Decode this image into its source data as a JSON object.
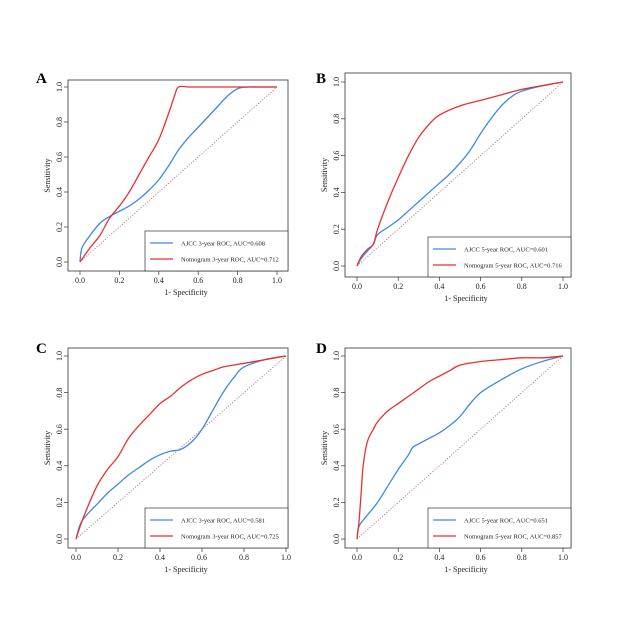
{
  "chart_data": [
    {
      "panel": "A",
      "type": "line",
      "xlabel": "1- Specificity",
      "ylabel": "Sensitivity",
      "xlim": [
        0,
        1
      ],
      "ylim": [
        0,
        1
      ],
      "ticks": [
        "0.0",
        "0.2",
        "0.4",
        "0.6",
        "0.8",
        "1.0"
      ],
      "grid": false,
      "legend_position": "bottom-right",
      "reference_line": true,
      "series": [
        {
          "name": "AJCC 3-year ROC, AUC=0.608",
          "color": "#3c8ae0",
          "x": [
            0,
            0.01,
            0.05,
            0.1,
            0.15,
            0.2,
            0.25,
            0.3,
            0.35,
            0.4,
            0.45,
            0.5,
            0.55,
            0.6,
            0.65,
            0.7,
            0.75,
            0.8,
            0.85,
            0.9,
            1.0
          ],
          "y": [
            0.0,
            0.08,
            0.15,
            0.22,
            0.26,
            0.29,
            0.32,
            0.36,
            0.41,
            0.47,
            0.55,
            0.64,
            0.71,
            0.77,
            0.83,
            0.89,
            0.95,
            0.99,
            1.0,
            1.0,
            1.0
          ]
        },
        {
          "name": "Nomogram 3-year ROC, AUC=0.712",
          "color": "#e8312f",
          "x": [
            0,
            0.05,
            0.1,
            0.15,
            0.2,
            0.25,
            0.3,
            0.35,
            0.4,
            0.45,
            0.48,
            0.5,
            0.55,
            0.6,
            0.7,
            0.8,
            0.9,
            1.0
          ],
          "y": [
            0.0,
            0.08,
            0.15,
            0.25,
            0.32,
            0.4,
            0.5,
            0.6,
            0.7,
            0.85,
            0.95,
            1.0,
            1.0,
            1.0,
            1.0,
            1.0,
            1.0,
            1.0
          ]
        }
      ]
    },
    {
      "panel": "B",
      "type": "line",
      "xlabel": "1- Specificity",
      "ylabel": "Sensitivity",
      "xlim": [
        0,
        1
      ],
      "ylim": [
        0,
        1
      ],
      "ticks": [
        "0.0",
        "0.2",
        "0.4",
        "0.6",
        "0.8",
        "1.0"
      ],
      "grid": false,
      "legend_position": "bottom-right",
      "reference_line": true,
      "series": [
        {
          "name": "AJCC 5-year ROC, AUC=0.601",
          "color": "#3c8ae0",
          "x": [
            0,
            0.02,
            0.05,
            0.08,
            0.1,
            0.15,
            0.2,
            0.25,
            0.3,
            0.35,
            0.4,
            0.45,
            0.5,
            0.55,
            0.6,
            0.65,
            0.7,
            0.75,
            0.8,
            0.9,
            1.0
          ],
          "y": [
            0.0,
            0.04,
            0.08,
            0.12,
            0.17,
            0.21,
            0.25,
            0.3,
            0.35,
            0.4,
            0.45,
            0.5,
            0.56,
            0.63,
            0.72,
            0.8,
            0.87,
            0.92,
            0.95,
            0.98,
            1.0
          ]
        },
        {
          "name": "Nomogram 5-year ROC, AUC=0.716",
          "color": "#e8312f",
          "x": [
            0,
            0.02,
            0.05,
            0.08,
            0.1,
            0.15,
            0.2,
            0.25,
            0.3,
            0.35,
            0.4,
            0.5,
            0.6,
            0.7,
            0.8,
            0.9,
            1.0
          ],
          "y": [
            0.0,
            0.05,
            0.09,
            0.12,
            0.2,
            0.35,
            0.48,
            0.6,
            0.7,
            0.77,
            0.82,
            0.87,
            0.9,
            0.93,
            0.96,
            0.98,
            1.0
          ]
        }
      ]
    },
    {
      "panel": "C",
      "type": "line",
      "xlabel": "1- Specificity",
      "ylabel": "Sensitivity",
      "xlim": [
        0,
        1
      ],
      "ylim": [
        0,
        1
      ],
      "ticks": [
        "0.0",
        "0.2",
        "0.4",
        "0.6",
        "0.8",
        "1.0"
      ],
      "grid": false,
      "legend_position": "bottom-right",
      "reference_line": true,
      "series": [
        {
          "name": "AJCC 3-year ROC, AUC=0.581",
          "color": "#3c8ae0",
          "x": [
            0,
            0.02,
            0.05,
            0.1,
            0.15,
            0.2,
            0.25,
            0.3,
            0.35,
            0.4,
            0.45,
            0.5,
            0.55,
            0.6,
            0.65,
            0.7,
            0.75,
            0.8,
            0.9,
            1.0
          ],
          "y": [
            0.0,
            0.08,
            0.13,
            0.19,
            0.25,
            0.3,
            0.35,
            0.39,
            0.43,
            0.46,
            0.48,
            0.49,
            0.53,
            0.6,
            0.7,
            0.8,
            0.88,
            0.94,
            0.98,
            1.0
          ]
        },
        {
          "name": "Nomogram 3-year ROC, AUC=0.725",
          "color": "#e8312f",
          "x": [
            0,
            0.02,
            0.05,
            0.1,
            0.15,
            0.2,
            0.25,
            0.3,
            0.35,
            0.4,
            0.45,
            0.5,
            0.55,
            0.6,
            0.65,
            0.7,
            0.75,
            0.8,
            0.9,
            1.0
          ],
          "y": [
            0.0,
            0.07,
            0.16,
            0.29,
            0.38,
            0.45,
            0.55,
            0.62,
            0.68,
            0.74,
            0.78,
            0.83,
            0.87,
            0.9,
            0.92,
            0.94,
            0.95,
            0.96,
            0.98,
            1.0
          ]
        }
      ]
    },
    {
      "panel": "D",
      "type": "line",
      "xlabel": "1- Specificity",
      "ylabel": "Sensitivity",
      "xlim": [
        0,
        1
      ],
      "ylim": [
        0,
        1
      ],
      "ticks": [
        "0.0",
        "0.2",
        "0.4",
        "0.6",
        "0.8",
        "1.0"
      ],
      "grid": false,
      "legend_position": "bottom-right",
      "reference_line": true,
      "series": [
        {
          "name": "AJCC 5-year ROC, AUC=0.651",
          "color": "#3c8ae0",
          "x": [
            0,
            0.01,
            0.05,
            0.1,
            0.15,
            0.2,
            0.25,
            0.27,
            0.3,
            0.35,
            0.4,
            0.45,
            0.5,
            0.55,
            0.6,
            0.7,
            0.8,
            0.9,
            1.0
          ],
          "y": [
            0.0,
            0.07,
            0.13,
            0.2,
            0.29,
            0.38,
            0.46,
            0.5,
            0.52,
            0.55,
            0.58,
            0.62,
            0.67,
            0.74,
            0.8,
            0.87,
            0.93,
            0.97,
            1.0
          ]
        },
        {
          "name": "Nomogram 5-year ROC, AUC=0.857",
          "color": "#e8312f",
          "x": [
            0,
            0.01,
            0.02,
            0.03,
            0.05,
            0.08,
            0.1,
            0.15,
            0.2,
            0.25,
            0.3,
            0.35,
            0.4,
            0.45,
            0.5,
            0.6,
            0.7,
            0.8,
            0.9,
            1.0
          ],
          "y": [
            0.0,
            0.1,
            0.25,
            0.4,
            0.53,
            0.6,
            0.64,
            0.7,
            0.74,
            0.78,
            0.82,
            0.86,
            0.89,
            0.92,
            0.95,
            0.97,
            0.98,
            0.99,
            0.99,
            1.0
          ]
        }
      ]
    }
  ]
}
